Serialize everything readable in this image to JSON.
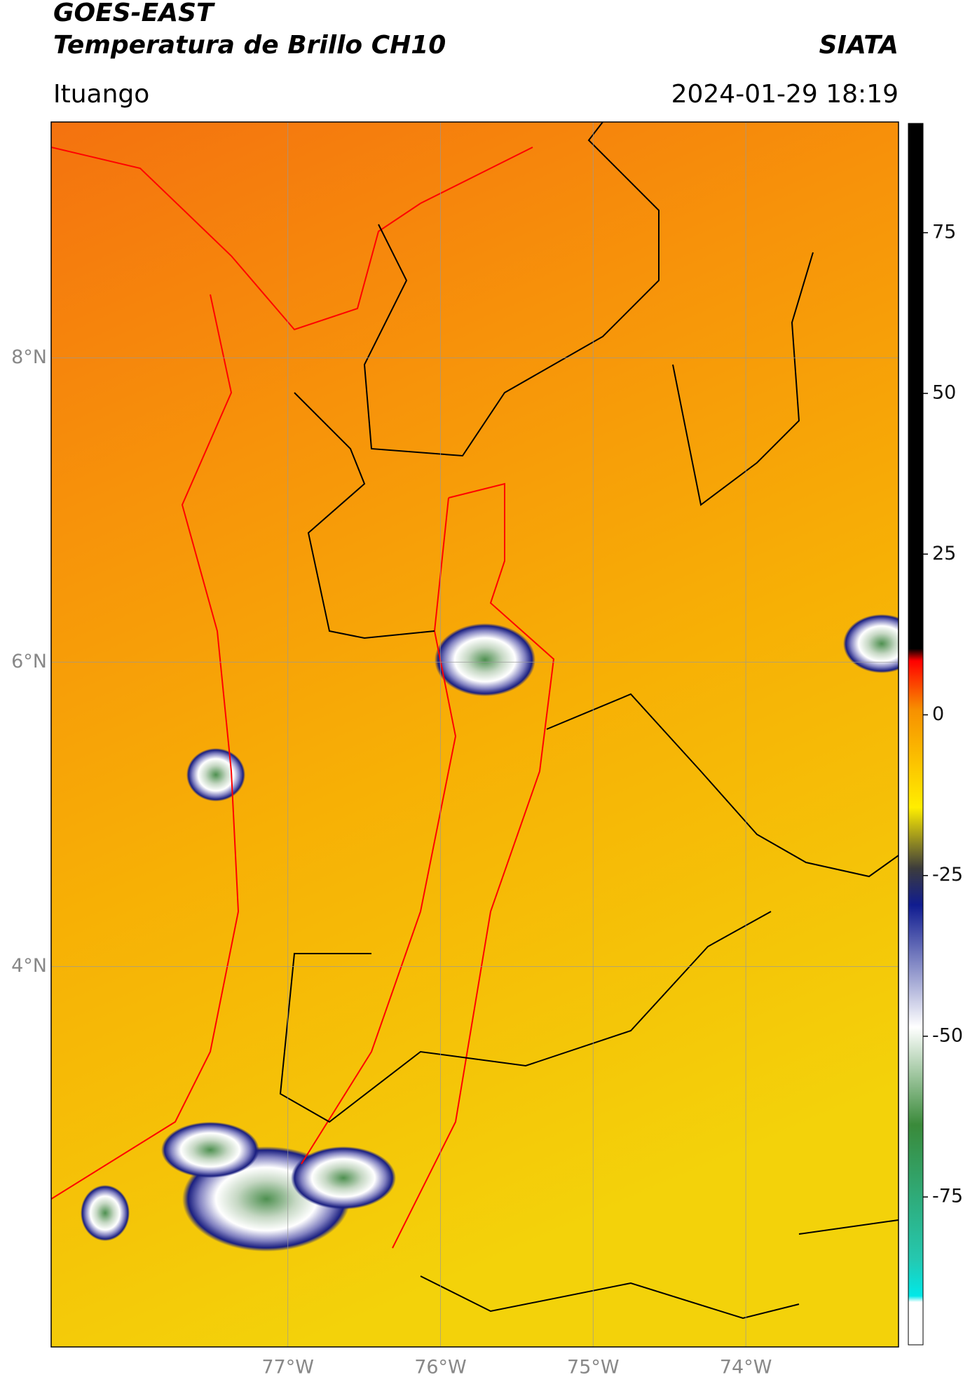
{
  "header": {
    "title": "GOES-EAST",
    "subtitle": "Temperatura de Brillo CH10",
    "source": "SIATA",
    "location": "Ituango",
    "datetime": "2024-01-29 18:19"
  },
  "map": {
    "xlim": [
      -78.55,
      -73.0
    ],
    "ylim": [
      1.5,
      9.55
    ],
    "xticks": [
      {
        "value": -77,
        "label": "77°W"
      },
      {
        "value": -76,
        "label": "76°W"
      },
      {
        "value": -75,
        "label": "75°W"
      },
      {
        "value": -74,
        "label": "74°W"
      }
    ],
    "yticks": [
      {
        "value": 8,
        "label": "8°N"
      },
      {
        "value": 6,
        "label": "6°N"
      },
      {
        "value": 4,
        "label": "4°N"
      }
    ],
    "grid": true
  },
  "colorbar": {
    "lim": [
      -98,
      92
    ],
    "ticks": [
      75,
      50,
      25,
      0,
      -25,
      -50,
      -75
    ]
  }
}
